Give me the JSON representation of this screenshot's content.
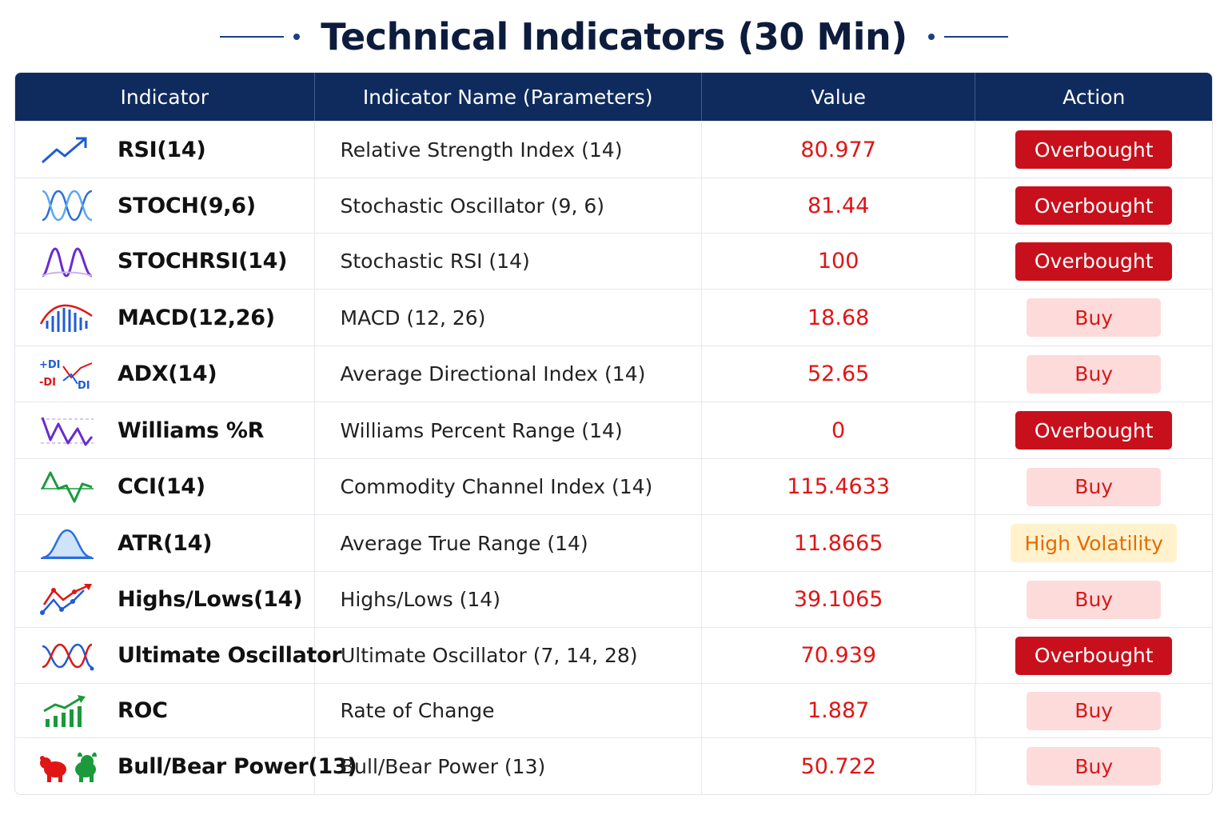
{
  "title": "Technical Indicators (30 Min)",
  "colors": {
    "header_bg": "#0f2b5e",
    "value": "#e01515",
    "overbought_bg": "#c8101c",
    "buy_bg": "#fddbdb",
    "highvol_bg": "#fff2cc"
  },
  "headers": [
    "Indicator",
    "Indicator Name (Parameters)",
    "Value",
    "Action"
  ],
  "rows": [
    {
      "icon": "trend-up-icon",
      "indicator": "RSI(14)",
      "name": "Relative Strength Index (14)",
      "value": "80.977",
      "action": "Overbought",
      "action_type": "overbought"
    },
    {
      "icon": "stochastic-wave-icon",
      "indicator": "STOCH(9,6)",
      "name": "Stochastic Oscillator (9, 6)",
      "value": "81.44",
      "action": "Overbought",
      "action_type": "overbought"
    },
    {
      "icon": "stochrsi-wave-icon",
      "indicator": "STOCHRSI(14)",
      "name": "Stochastic RSI (14)",
      "value": "100",
      "action": "Overbought",
      "action_type": "overbought"
    },
    {
      "icon": "macd-histogram-icon",
      "indicator": "MACD(12,26)",
      "name": "MACD (12, 26)",
      "value": "18.68",
      "action": "Buy",
      "action_type": "buy"
    },
    {
      "icon": "adx-di-icon",
      "indicator": "ADX(14)",
      "name": "Average Directional Index (14)",
      "value": "52.65",
      "action": "Buy",
      "action_type": "buy"
    },
    {
      "icon": "williams-r-icon",
      "indicator": "Williams %R",
      "name": "Williams Percent Range (14)",
      "value": "0",
      "action": "Overbought",
      "action_type": "overbought"
    },
    {
      "icon": "cci-wave-icon",
      "indicator": "CCI(14)",
      "name": "Commodity Channel Index (14)",
      "value": "115.4633",
      "action": "Buy",
      "action_type": "buy"
    },
    {
      "icon": "atr-bell-curve-icon",
      "indicator": "ATR(14)",
      "name": "Average True Range (14)",
      "value": "11.8665",
      "action": "High Volatility",
      "action_type": "highvol"
    },
    {
      "icon": "highs-lows-icon",
      "indicator": "Highs/Lows(14)",
      "name": "Highs/Lows (14)",
      "value": "39.1065",
      "action": "Buy",
      "action_type": "buy"
    },
    {
      "icon": "ultimate-oscillator-icon",
      "indicator": "Ultimate Oscillator",
      "name": "Ultimate Oscillator (7, 14, 28)",
      "value": "70.939",
      "action": "Overbought",
      "action_type": "overbought"
    },
    {
      "icon": "roc-bars-icon",
      "indicator": "ROC",
      "name": "Rate of Change",
      "value": "1.887",
      "action": "Buy",
      "action_type": "buy"
    },
    {
      "icon": "bull-bear-icon",
      "indicator": "Bull/Bear Power(13)",
      "name": "Bull/Bear Power (13)",
      "value": "50.722",
      "action": "Buy",
      "action_type": "buy"
    }
  ],
  "adx_icon_labels": {
    "plus_di": "+DI",
    "minus_di": "-DI",
    "di": "DI"
  }
}
